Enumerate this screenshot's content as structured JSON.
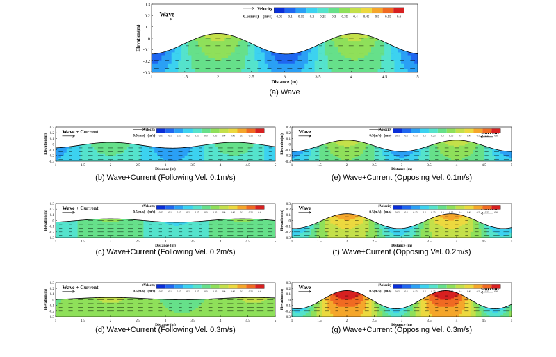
{
  "palette": [
    "#0a2fd8",
    "#1f67f0",
    "#2aa0f5",
    "#3cd2f0",
    "#55e3cc",
    "#66e08a",
    "#8fe05a",
    "#c4e04a",
    "#ecd93f",
    "#f5a62b",
    "#f06a22",
    "#d72020"
  ],
  "legend": {
    "title": "Velocity",
    "unit": "(m/s)",
    "ref_label": "0.5(m/s)",
    "ticks": [
      "0.05",
      "0.1",
      "0.15",
      "0.2",
      "0.25",
      "0.3",
      "0.35",
      "0.4",
      "0.45",
      "0.5",
      "0.55",
      "0.6"
    ]
  },
  "axes": {
    "xlabel": "Distance (m)",
    "ylabel": "Elevation(m)",
    "xlim": [
      1,
      5
    ],
    "ylim": [
      -0.3,
      0.3
    ],
    "xticks": [
      "1",
      "1.5",
      "2",
      "2.5",
      "3",
      "3.5",
      "4",
      "4.5",
      "5"
    ],
    "yticks": [
      "0.3",
      "0.2",
      "0.1",
      "0",
      "-0.1",
      "-0.2",
      "-0.3"
    ]
  },
  "chart_data": [
    {
      "type": "heatmap",
      "caption": "(a) Wave",
      "annotations": [
        "Wave"
      ],
      "wave": {
        "mean_level": -0.05,
        "amplitude": 0.09,
        "period": 2.05,
        "phase": 2.0
      },
      "velocity": {
        "base": 0.22,
        "current": 0.0,
        "wave": 0.16
      }
    },
    {
      "type": "heatmap",
      "caption": "(b) Wave+Current (Following Vel. 0.1m/s)",
      "annotations": [
        "Wave + Current"
      ],
      "wave": {
        "mean_level": -0.02,
        "amplitude": 0.05,
        "period": 2.25,
        "phase": 2.0
      },
      "velocity": {
        "base": 0.2,
        "current": 0.1,
        "wave": 0.1
      }
    },
    {
      "type": "heatmap",
      "caption": "(c) Wave+Current (Following Vel. 0.2m/s)",
      "annotations": [
        "Wave + Current"
      ],
      "wave": {
        "mean_level": 0.0,
        "amplitude": 0.03,
        "period": 2.4,
        "phase": 2.0
      },
      "velocity": {
        "base": 0.25,
        "current": 0.2,
        "wave": 0.06
      }
    },
    {
      "type": "heatmap",
      "caption": "(d) Wave+Current (Following Vel. 0.3m/s)",
      "annotations": [
        "Wave + Current"
      ],
      "wave": {
        "mean_level": 0.02,
        "amplitude": 0.02,
        "period": 2.6,
        "phase": 2.0
      },
      "velocity": {
        "base": 0.32,
        "current": 0.3,
        "wave": 0.04
      }
    },
    {
      "type": "heatmap",
      "caption": "(e) Wave+Current (Opposing Vel. 0.1m/s)",
      "annotations": [
        "Wave",
        "Current"
      ],
      "wave": {
        "mean_level": -0.03,
        "amplitude": 0.1,
        "period": 2.0,
        "phase": 2.0
      },
      "velocity": {
        "base": 0.25,
        "current": -0.1,
        "wave": 0.14
      }
    },
    {
      "type": "heatmap",
      "caption": "(f) Wave+Current (Opposing Vel. 0.2m/s)",
      "annotations": [
        "Wave",
        "Current"
      ],
      "wave": {
        "mean_level": -0.01,
        "amplitude": 0.13,
        "period": 1.9,
        "phase": 2.0
      },
      "velocity": {
        "base": 0.32,
        "current": -0.2,
        "wave": 0.18
      }
    },
    {
      "type": "heatmap",
      "caption": "(g) Wave+Current (Opposing Vel. 0.3m/s)",
      "annotations": [
        "Wave",
        "Current"
      ],
      "wave": {
        "mean_level": 0.0,
        "amplitude": 0.16,
        "period": 1.8,
        "phase": 2.0
      },
      "velocity": {
        "base": 0.4,
        "current": -0.3,
        "wave": 0.24
      }
    }
  ]
}
